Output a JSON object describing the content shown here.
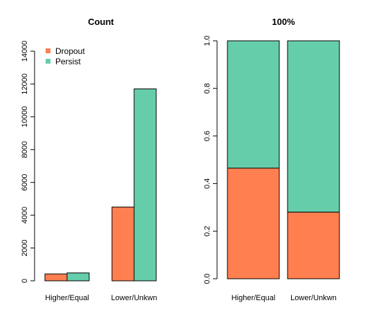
{
  "colors": {
    "Dropout": "#FF7F50",
    "Persist": "#66CDAA"
  },
  "chart_data": [
    {
      "type": "bar",
      "title": "Count",
      "mode": "grouped",
      "categories": [
        "Higher/Equal",
        "Lower/Unkwn"
      ],
      "series": [
        {
          "name": "Dropout",
          "values": [
            420,
            4500
          ]
        },
        {
          "name": "Persist",
          "values": [
            480,
            11700
          ]
        }
      ],
      "ylim": [
        0,
        14000
      ],
      "yticks": [
        "0",
        "2000",
        "4000",
        "6000",
        "8000",
        "10000",
        "12000",
        "14000"
      ],
      "legend": {
        "position": "top-left",
        "entries": [
          "Dropout",
          "Persist"
        ]
      },
      "grid": false
    },
    {
      "type": "bar",
      "title": "100%",
      "mode": "stacked-percent",
      "categories": [
        "Higher/Equal",
        "Lower/Unkwn"
      ],
      "series": [
        {
          "name": "Dropout",
          "values": [
            0.465,
            0.28
          ]
        },
        {
          "name": "Persist",
          "values": [
            0.535,
            0.72
          ]
        }
      ],
      "ylim": [
        0,
        1
      ],
      "yticks": [
        "0.0",
        "0.2",
        "0.4",
        "0.6",
        "0.8",
        "1.0"
      ],
      "grid": false
    }
  ]
}
